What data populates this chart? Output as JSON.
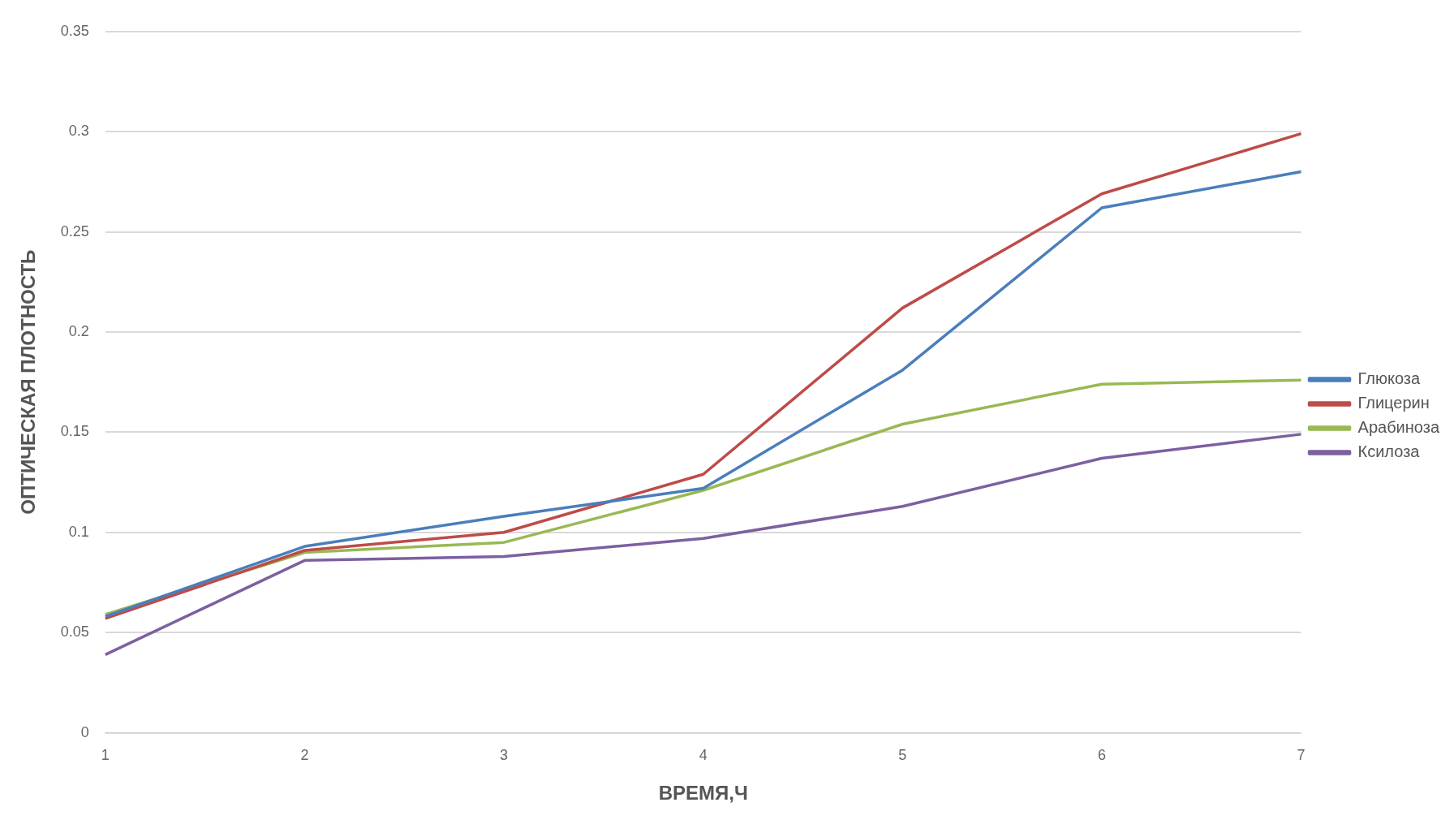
{
  "chart_data": {
    "type": "line",
    "xlabel": "ВРЕМЯ,Ч",
    "ylabel": "ОПТИЧЕСКАЯ ПЛОТНОСТЬ",
    "categories": [
      "1",
      "2",
      "3",
      "4",
      "5",
      "6",
      "7"
    ],
    "series": [
      {
        "name": "Глюкоза",
        "color": "#4a7ebb",
        "values": [
          0.058,
          0.093,
          0.108,
          0.122,
          0.181,
          0.262,
          0.28
        ]
      },
      {
        "name": "Глицерин",
        "color": "#be4b48",
        "values": [
          0.057,
          0.091,
          0.1,
          0.129,
          0.212,
          0.269,
          0.299
        ]
      },
      {
        "name": "Арабиноза",
        "color": "#98b954",
        "values": [
          0.059,
          0.09,
          0.095,
          0.121,
          0.154,
          0.174,
          0.176
        ]
      },
      {
        "name": "Ксилоза",
        "color": "#7d60a0",
        "values": [
          0.039,
          0.086,
          0.088,
          0.097,
          0.113,
          0.137,
          0.149
        ]
      }
    ],
    "ylim": [
      0,
      0.35
    ],
    "yticks": [
      0,
      0.05,
      0.1,
      0.15,
      0.2,
      0.25,
      0.3,
      0.35
    ],
    "grid": "y",
    "legend": "right",
    "marker": "none",
    "line_style": "solid"
  }
}
